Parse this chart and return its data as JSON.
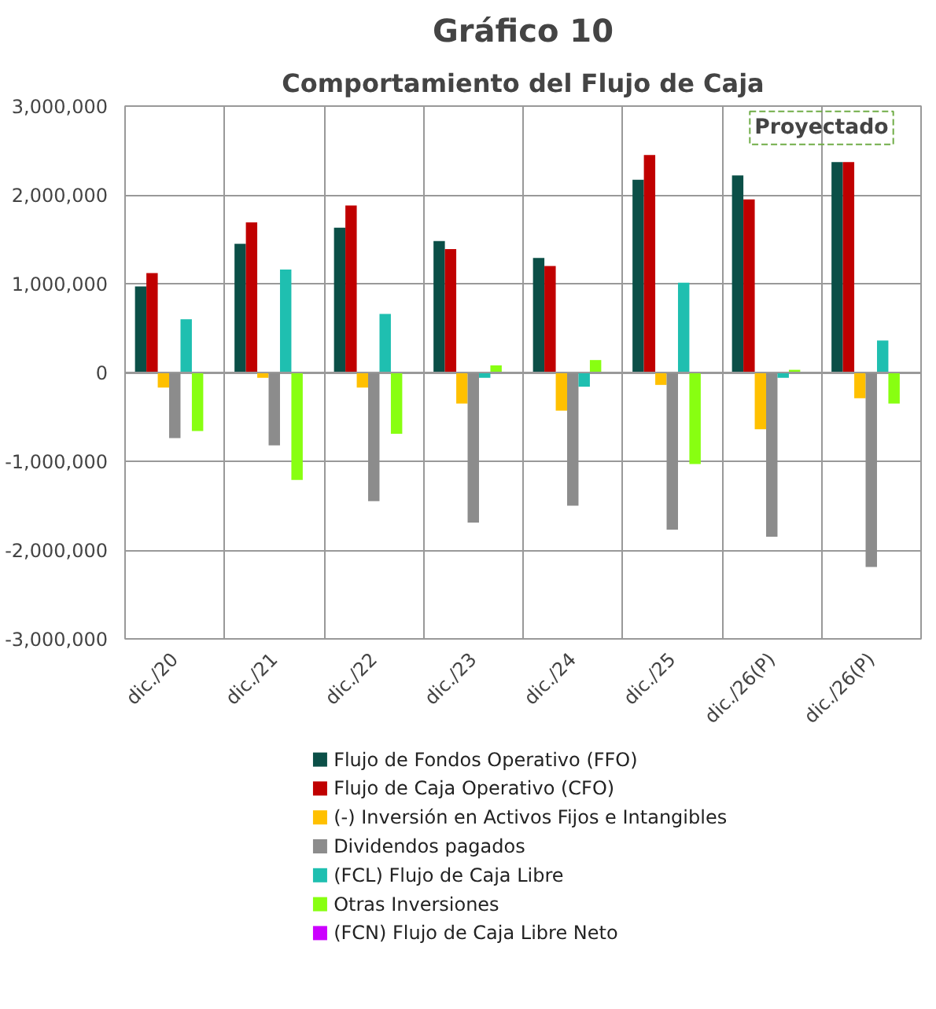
{
  "chart_data": {
    "type": "bar",
    "title": "Gráfico 10",
    "subtitle": "Comportamiento del Flujo de Caja",
    "categories": [
      "dic./20",
      "dic./21",
      "dic./22",
      "dic./23",
      "dic./24",
      "dic./25",
      "dic./26(P)",
      "dic./26(P)"
    ],
    "series": [
      {
        "name": "Flujo de Fondos Operativo (FFO)",
        "color": "#0b4f47",
        "values": [
          970000,
          1450000,
          1630000,
          1480000,
          1290000,
          2170000,
          2220000,
          2370000
        ]
      },
      {
        "name": "Flujo de Caja Operativo (CFO)",
        "color": "#c00000",
        "values": [
          1120000,
          1690000,
          1880000,
          1390000,
          1200000,
          2450000,
          1950000,
          2370000
        ]
      },
      {
        "name": "(-) Inversión en Activos Fijos e Intangibles",
        "color": "#ffc000",
        "values": [
          -170000,
          -60000,
          -170000,
          -350000,
          -430000,
          -140000,
          -640000,
          -290000
        ]
      },
      {
        "name": "Dividendos pagados",
        "color": "#8c8c8c",
        "values": [
          -740000,
          -820000,
          -1450000,
          -1690000,
          -1500000,
          -1770000,
          -1850000,
          -2190000
        ]
      },
      {
        "name": "(FCL) Flujo de Caja Libre",
        "color": "#1fbfb0",
        "values": [
          600000,
          1160000,
          660000,
          -60000,
          -160000,
          1010000,
          -60000,
          360000
        ]
      },
      {
        "name": "Otras Inversiones",
        "color": "#88ff11",
        "values": [
          -660000,
          -1210000,
          -690000,
          80000,
          140000,
          -1030000,
          30000,
          -350000
        ]
      },
      {
        "name": "(FCN) Flujo de Caja Libre Neto",
        "color": "#cc00ff",
        "values": [
          0,
          0,
          0,
          0,
          0,
          0,
          0,
          0
        ]
      }
    ],
    "ylim": [
      -3000000,
      3000000
    ],
    "yticks": [
      {
        "value": -3000000,
        "label": "-3,000,000"
      },
      {
        "value": -2000000,
        "label": "-2,000,000"
      },
      {
        "value": -1000000,
        "label": "-1,000,000"
      },
      {
        "value": 0,
        "label": "0"
      },
      {
        "value": 1000000,
        "label": "1,000,000"
      },
      {
        "value": 2000000,
        "label": "2,000,000"
      },
      {
        "value": 3000000,
        "label": "3,000,000"
      }
    ],
    "grid": true,
    "legend": "bottom",
    "annotations": [
      "Proyectado"
    ]
  }
}
